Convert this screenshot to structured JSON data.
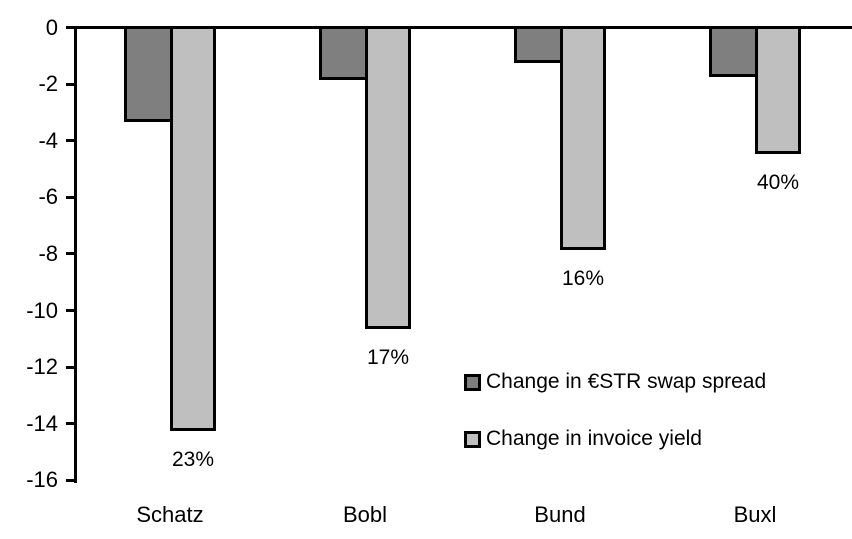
{
  "chart_data": {
    "type": "bar",
    "title": "",
    "xlabel": "",
    "ylabel": "",
    "grid": false,
    "background_color": "#ffffff",
    "axis_color": "#000000",
    "categories": [
      "Schatz",
      "Bobl",
      "Bund",
      "Buxl"
    ],
    "series": [
      {
        "name": "Change in €STR swap spread",
        "color": "#7f7f7f",
        "border_color": "#000000",
        "values": [
          -3.3,
          -1.8,
          -1.2,
          -1.7
        ]
      },
      {
        "name": "Change in invoice yield",
        "color": "#bfbfbf",
        "border_color": "#000000",
        "values": [
          -14.2,
          -10.6,
          -7.8,
          -4.4
        ]
      }
    ],
    "bar_labels": {
      "attached_to_series": "Change in invoice yield",
      "position": "below-bar",
      "values": [
        "23%",
        "17%",
        "16%",
        "40%"
      ]
    },
    "yaxis": {
      "min": -16,
      "max": 0,
      "step": -2,
      "ticks": [
        "0",
        "-2",
        "-4",
        "-6",
        "-8",
        "-10",
        "-12",
        "-14",
        "-16"
      ]
    },
    "legend": {
      "position": "inside-lower-right"
    }
  }
}
